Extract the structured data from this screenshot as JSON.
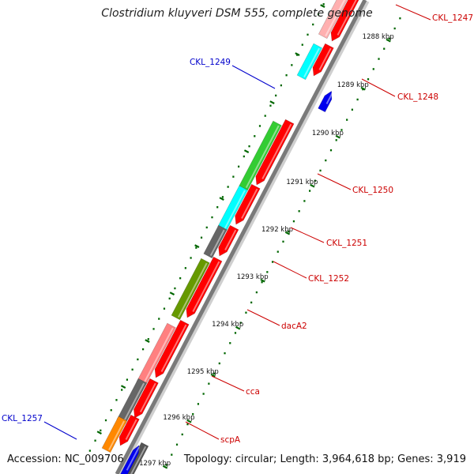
{
  "title": "Clostridium kluyveri DSM 555, complete genome",
  "footer": {
    "accession": "Accession: NC_009706",
    "topology": "Topology: circular; Length: 3,964,618 bp; Genes: 3,919"
  },
  "ticks": [
    "1288 kbp",
    "1289 kbp",
    "1290 kbp",
    "1291 kbp",
    "1292 kbp",
    "1293 kbp",
    "1294 kbp",
    "1295 kbp",
    "1296 kbp",
    "1297 kbp"
  ],
  "labels": [
    {
      "text": "CKL_1247",
      "color": "#cc0000"
    },
    {
      "text": "CKL_1248",
      "color": "#cc0000"
    },
    {
      "text": "CKL_1249",
      "color": "#0000cc"
    },
    {
      "text": "CKL_1250",
      "color": "#cc0000"
    },
    {
      "text": "CKL_1251",
      "color": "#cc0000"
    },
    {
      "text": "CKL_1252",
      "color": "#cc0000"
    },
    {
      "text": "dacA2",
      "color": "#cc0000"
    },
    {
      "text": "cca",
      "color": "#cc0000"
    },
    {
      "text": "scpA",
      "color": "#cc0000"
    },
    {
      "text": "CKL_1257",
      "color": "#0000cc"
    }
  ],
  "colors": {
    "cds": "#ff0000",
    "cog_cyan": "#00ffff",
    "cog_green": "#33cc33",
    "cog_olive": "#669900",
    "cog_pink": "#ff8080",
    "cog_gray": "#666666",
    "cog_orange": "#ff8800",
    "reverse_cds": "#0000ee",
    "tick": "#006600"
  }
}
